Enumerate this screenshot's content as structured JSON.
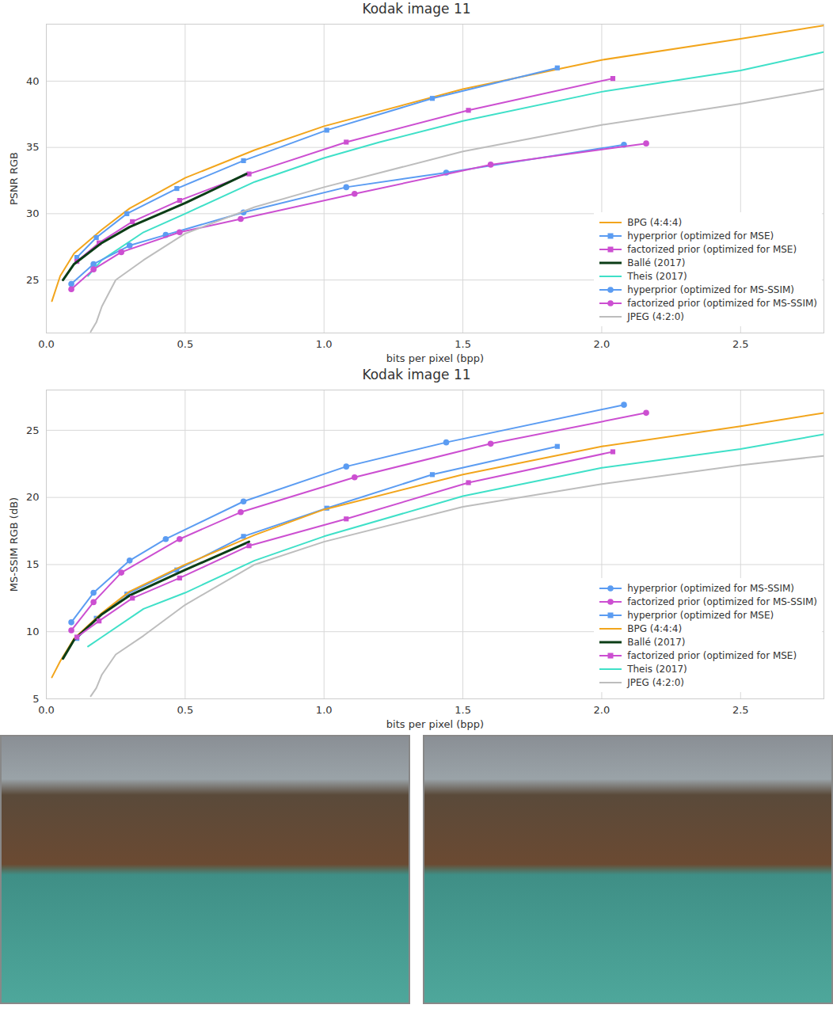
{
  "chart_data": [
    {
      "type": "line",
      "title": "Kodak image 11",
      "x_label": "bits per pixel (bpp)",
      "y_label": "PSNR RGB",
      "xlim": [
        0,
        2.8
      ],
      "ylim": [
        21,
        44.3
      ],
      "xticks": [
        {
          "value": 0,
          "label": "0.0"
        },
        0.5,
        {
          "value": 1,
          "label": "1.0"
        },
        1.5,
        {
          "value": 2,
          "label": "2.0"
        },
        2.5
      ],
      "yticks": [
        25,
        30,
        35,
        40
      ],
      "grid": true,
      "legend": "lower right",
      "series": [
        {
          "name": "BPG (4:4:4)",
          "color": "#f2a51c",
          "marker": "none",
          "x": [
            0.02,
            0.05,
            0.1,
            0.2,
            0.3,
            0.5,
            0.75,
            1.0,
            1.5,
            2.0,
            2.5,
            2.8
          ],
          "values": [
            23.4,
            25.3,
            27.0,
            28.8,
            30.4,
            32.7,
            34.8,
            36.6,
            39.4,
            41.6,
            43.2,
            44.2
          ]
        },
        {
          "name": "hyperprior (optimized for MSE)",
          "color": "#5b9cf2",
          "marker": "square",
          "x": [
            0.11,
            0.18,
            0.29,
            0.47,
            0.71,
            1.01,
            1.39,
            1.84
          ],
          "values": [
            26.7,
            28.2,
            30.0,
            31.9,
            34.0,
            36.3,
            38.7,
            41.0
          ]
        },
        {
          "name": "factorized prior (optimized for MSE)",
          "color": "#cc4fd1",
          "marker": "square",
          "x": [
            0.11,
            0.19,
            0.31,
            0.48,
            0.73,
            1.08,
            1.52,
            2.04
          ],
          "values": [
            26.4,
            27.8,
            29.4,
            31.0,
            33.0,
            35.4,
            37.8,
            40.2
          ]
        },
        {
          "name": "Ballé (2017)",
          "color": "#0b3d16",
          "marker": "none",
          "x": [
            0.06,
            0.1,
            0.2,
            0.3,
            0.5,
            0.72
          ],
          "values": [
            25.0,
            26.2,
            27.8,
            29.0,
            30.8,
            33.0
          ]
        },
        {
          "name": "Theis (2017)",
          "color": "#3fe0c8",
          "marker": "none",
          "x": [
            0.15,
            0.2,
            0.35,
            0.5,
            0.75,
            1.0,
            1.2,
            1.5,
            2.0,
            2.5,
            2.8
          ],
          "values": [
            25.3,
            26.5,
            28.6,
            30.0,
            32.4,
            34.2,
            35.4,
            37.0,
            39.2,
            40.8,
            42.2
          ]
        },
        {
          "name": "hyperprior (optimized for MS-SSIM)",
          "color": "#5b9cf2",
          "marker": "circle",
          "x": [
            0.09,
            0.17,
            0.3,
            0.43,
            0.71,
            1.08,
            1.44,
            2.08
          ],
          "values": [
            24.7,
            26.2,
            27.6,
            28.4,
            30.1,
            32.0,
            33.1,
            35.2
          ]
        },
        {
          "name": "factorized prior (optimized for MS-SSIM)",
          "color": "#cc4fd1",
          "marker": "circle",
          "x": [
            0.09,
            0.17,
            0.27,
            0.48,
            0.7,
            1.11,
            1.6,
            2.16
          ],
          "values": [
            24.3,
            25.8,
            27.1,
            28.6,
            29.6,
            31.5,
            33.7,
            35.3
          ]
        },
        {
          "name": "JPEG (4:2:0)",
          "color": "#bdbdbd",
          "marker": "none",
          "x": [
            0.16,
            0.18,
            0.2,
            0.25,
            0.35,
            0.5,
            0.75,
            1.0,
            1.5,
            2.0,
            2.5,
            2.8
          ],
          "values": [
            21.1,
            21.8,
            23.0,
            25.0,
            26.5,
            28.5,
            30.5,
            32.0,
            34.7,
            36.7,
            38.3,
            39.4
          ]
        }
      ]
    },
    {
      "type": "line",
      "title": "Kodak image 11",
      "x_label": "bits per pixel (bpp)",
      "y_label": "MS-SSIM RGB (dB)",
      "xlim": [
        0,
        2.8
      ],
      "ylim": [
        5,
        28
      ],
      "xticks": [
        {
          "value": 0,
          "label": "0.0"
        },
        0.5,
        {
          "value": 1,
          "label": "1.0"
        },
        1.5,
        {
          "value": 2,
          "label": "2.0"
        },
        2.5
      ],
      "yticks": [
        5,
        10,
        15,
        20,
        25
      ],
      "grid": true,
      "legend": "lower right",
      "series": [
        {
          "name": "hyperprior (optimized for MS-SSIM)",
          "color": "#5b9cf2",
          "marker": "circle",
          "x": [
            0.09,
            0.17,
            0.3,
            0.43,
            0.71,
            1.08,
            1.44,
            2.08
          ],
          "values": [
            10.7,
            12.9,
            15.3,
            16.9,
            19.7,
            22.3,
            24.1,
            26.9
          ]
        },
        {
          "name": "factorized prior (optimized for MS-SSIM)",
          "color": "#cc4fd1",
          "marker": "circle",
          "x": [
            0.09,
            0.17,
            0.27,
            0.48,
            0.7,
            1.11,
            1.6,
            2.16
          ],
          "values": [
            10.1,
            12.2,
            14.4,
            16.9,
            18.9,
            21.5,
            24.0,
            26.3
          ]
        },
        {
          "name": "hyperprior (optimized for MSE)",
          "color": "#5b9cf2",
          "marker": "square",
          "x": [
            0.11,
            0.18,
            0.29,
            0.47,
            0.71,
            1.01,
            1.39,
            1.84
          ],
          "values": [
            9.5,
            11.0,
            12.8,
            14.6,
            17.1,
            19.2,
            21.7,
            23.8
          ]
        },
        {
          "name": "BPG (4:4:4)",
          "color": "#f2a51c",
          "marker": "none",
          "x": [
            0.02,
            0.05,
            0.1,
            0.2,
            0.3,
            0.5,
            0.75,
            1.0,
            1.5,
            2.0,
            2.5,
            2.8
          ],
          "values": [
            6.6,
            7.8,
            9.5,
            11.4,
            13.0,
            15.0,
            17.2,
            19.1,
            21.7,
            23.8,
            25.3,
            26.3
          ]
        },
        {
          "name": "Ballé (2017)",
          "color": "#0b3d16",
          "marker": "none",
          "x": [
            0.06,
            0.1,
            0.2,
            0.3,
            0.5,
            0.73
          ],
          "values": [
            8.0,
            9.4,
            11.3,
            12.7,
            14.6,
            16.7
          ]
        },
        {
          "name": "factorized prior (optimized for MSE)",
          "color": "#cc4fd1",
          "marker": "square",
          "x": [
            0.11,
            0.19,
            0.31,
            0.48,
            0.73,
            1.08,
            1.52,
            2.04
          ],
          "values": [
            9.6,
            10.8,
            12.5,
            14.0,
            16.4,
            18.4,
            21.1,
            23.4
          ]
        },
        {
          "name": "Theis (2017)",
          "color": "#3fe0c8",
          "marker": "none",
          "x": [
            0.15,
            0.2,
            0.35,
            0.5,
            0.75,
            1.0,
            1.5,
            2.0,
            2.5,
            2.8
          ],
          "values": [
            8.9,
            9.6,
            11.7,
            12.9,
            15.3,
            17.1,
            20.1,
            22.2,
            23.6,
            24.7
          ]
        },
        {
          "name": "JPEG (4:2:0)",
          "color": "#bdbdbd",
          "marker": "none",
          "x": [
            0.16,
            0.18,
            0.2,
            0.25,
            0.35,
            0.5,
            0.75,
            1.0,
            1.5,
            2.0,
            2.5,
            2.8
          ],
          "values": [
            5.2,
            5.8,
            6.8,
            8.3,
            9.7,
            12.0,
            15.0,
            16.7,
            19.3,
            21.0,
            22.4,
            23.1
          ]
        }
      ]
    }
  ]
}
